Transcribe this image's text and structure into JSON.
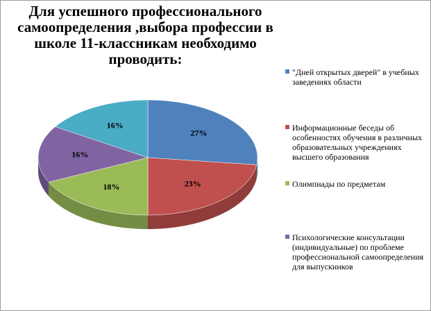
{
  "chart_data": {
    "type": "pie3d",
    "title": "Для успешного профессионального самоопределения ,выбора профессии в школе 11-классникам необходимо проводить:",
    "categories": [
      "\"Дней открытых дверей\" в учебных заведениях области",
      "Информационные беседы об особенностях обучения в различных образовательных учреждениях высшего образования",
      "Олимпиады по предметам",
      "Психологические консультации (индивидуальные) по проблеме профессиональной самоопределения для выпускников",
      null
    ],
    "values": [
      27,
      23,
      18,
      16,
      16
    ],
    "value_labels": [
      "27%",
      "23%",
      "18%",
      "16%",
      "16%"
    ],
    "colors": [
      "#4f81bd",
      "#c0504d",
      "#9bbb59",
      "#8064a2",
      "#4bacc6"
    ]
  }
}
